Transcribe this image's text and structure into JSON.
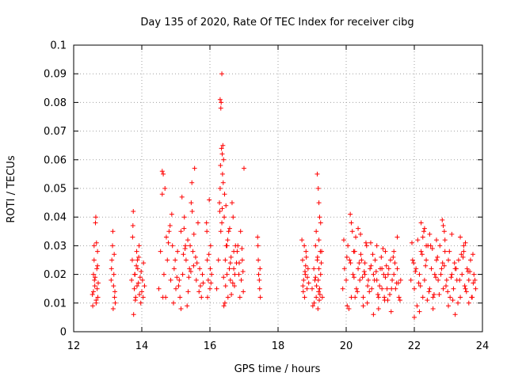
{
  "chart_data": {
    "type": "scatter",
    "title": "Day 135 of 2020, Rate Of TEC Index for receiver cibg",
    "xlabel": "GPS time / hours",
    "ylabel": "ROTI / TECUs",
    "xlim": [
      12,
      24
    ],
    "ylim": [
      0,
      0.1
    ],
    "x_ticks": [
      12,
      14,
      16,
      18,
      20,
      22,
      24
    ],
    "y_ticks": [
      0,
      0.01,
      0.02,
      0.03,
      0.04,
      0.05,
      0.06,
      0.07,
      0.08,
      0.09,
      0.1
    ],
    "x_tick_labels": [
      "12",
      "14",
      "16",
      "18",
      "20",
      "22",
      "24"
    ],
    "y_tick_labels": [
      "0",
      "0.01",
      "0.02",
      "0.03",
      "0.04",
      "0.05",
      "0.06",
      "0.07",
      "0.08",
      "0.09",
      "0.1"
    ],
    "grid": true,
    "marker": "+",
    "series": [
      {
        "name": "ROTI",
        "color": "#ff0000",
        "x": [
          12.55,
          12.58,
          12.6,
          12.62,
          12.64,
          12.66,
          12.68,
          12.7,
          12.72,
          12.56,
          12.6,
          12.65,
          12.69,
          12.71,
          12.63,
          12.67,
          12.58,
          12.7,
          12.61,
          12.66,
          13.1,
          13.12,
          13.15,
          13.18,
          13.2,
          13.22,
          13.14,
          13.17,
          13.11,
          13.21,
          13.16,
          13.19,
          13.7,
          13.72,
          13.75,
          13.78,
          13.8,
          13.82,
          13.85,
          13.88,
          13.9,
          13.92,
          13.95,
          14.0,
          14.05,
          14.08,
          13.74,
          13.81,
          13.87,
          13.93,
          13.98,
          14.02,
          13.76,
          13.84,
          13.91,
          13.97,
          13.73,
          13.79,
          14.04,
          13.86,
          14.5,
          14.55,
          14.6,
          14.65,
          14.7,
          14.75,
          14.8,
          14.85,
          14.9,
          14.95,
          15.0,
          15.05,
          15.1,
          15.15,
          15.2,
          15.25,
          15.3,
          15.35,
          15.4,
          15.45,
          15.5,
          15.55,
          15.6,
          15.65,
          15.7,
          15.75,
          15.8,
          14.62,
          14.68,
          14.72,
          14.88,
          14.98,
          15.08,
          15.18,
          15.28,
          15.38,
          15.48,
          15.58,
          15.68,
          15.78,
          14.6,
          14.63,
          14.93,
          15.12,
          15.24,
          15.33,
          15.42,
          15.52,
          15.47,
          15.36,
          15.22,
          15.03,
          14.83,
          14.78,
          15.62,
          15.72,
          15.15,
          15.27,
          15.44,
          15.53,
          15.9,
          15.92,
          15.95,
          15.98,
          16.0,
          16.02,
          16.05,
          15.93,
          15.97,
          16.01,
          15.91,
          16.03,
          16.2,
          16.25,
          16.3,
          16.32,
          16.35,
          16.38,
          16.4,
          16.42,
          16.45,
          16.48,
          16.5,
          16.55,
          16.6,
          16.65,
          16.7,
          16.75,
          16.8,
          16.85,
          16.9,
          16.95,
          17.0,
          16.3,
          16.33,
          16.34,
          16.36,
          16.31,
          16.37,
          16.39,
          16.43,
          16.47,
          16.52,
          16.58,
          16.62,
          16.68,
          16.72,
          16.78,
          16.82,
          16.88,
          16.92,
          16.98,
          16.32,
          16.35,
          16.29,
          16.44,
          16.41,
          16.46,
          16.53,
          16.57,
          16.63,
          16.67,
          16.73,
          16.86,
          16.94,
          16.97,
          16.28,
          16.36,
          16.4,
          16.5,
          16.6,
          16.7,
          17.4,
          17.42,
          17.45,
          17.48,
          17.43,
          17.46,
          17.41,
          17.47,
          18.7,
          18.72,
          18.75,
          18.78,
          18.8,
          18.82,
          18.85,
          18.88,
          18.9,
          18.74,
          18.81,
          18.77,
          18.86,
          18.83,
          18.73,
          18.79,
          19.0,
          19.05,
          19.08,
          19.1,
          19.12,
          19.15,
          19.18,
          19.2,
          19.22,
          19.25,
          19.28,
          19.3,
          19.15,
          19.18,
          19.2,
          19.22,
          19.25,
          19.12,
          19.2,
          19.24,
          19.06,
          19.1,
          19.16,
          19.19,
          19.27,
          19.02,
          19.13,
          19.23,
          19.17,
          19.21,
          19.9,
          19.95,
          20.0,
          20.05,
          20.1,
          20.15,
          20.2,
          20.25,
          20.3,
          20.35,
          20.4,
          20.45,
          20.5,
          20.55,
          20.6,
          20.65,
          20.7,
          20.75,
          20.8,
          20.85,
          20.9,
          20.95,
          21.0,
          21.05,
          21.1,
          21.15,
          21.2,
          21.25,
          21.3,
          21.35,
          21.4,
          21.45,
          21.5,
          21.55,
          21.6,
          20.12,
          20.18,
          20.22,
          20.28,
          20.38,
          20.48,
          20.58,
          20.68,
          20.78,
          20.88,
          20.98,
          21.08,
          21.18,
          21.28,
          21.38,
          21.48,
          21.58,
          19.93,
          20.03,
          20.13,
          20.23,
          20.33,
          20.43,
          20.53,
          20.63,
          20.73,
          20.83,
          20.93,
          21.03,
          21.13,
          21.23,
          21.33,
          21.43,
          21.53,
          20.15,
          20.08,
          20.42,
          20.62,
          20.72,
          21.12,
          21.32,
          20.02,
          20.5,
          20.9,
          21.4,
          21.22,
          21.05,
          20.35,
          20.26,
          20.55,
          20.8,
          21.5,
          20.95,
          21.15,
          21.9,
          21.95,
          22.0,
          22.05,
          22.1,
          22.15,
          22.2,
          22.25,
          22.3,
          22.35,
          22.4,
          22.45,
          22.5,
          22.55,
          22.6,
          22.65,
          22.7,
          22.75,
          22.8,
          22.85,
          22.9,
          22.95,
          23.0,
          23.05,
          23.1,
          23.15,
          23.2,
          23.25,
          23.3,
          23.35,
          23.4,
          23.45,
          23.5,
          23.55,
          23.6,
          23.65,
          23.7,
          23.75,
          23.8,
          21.93,
          22.03,
          22.13,
          22.23,
          22.33,
          22.43,
          22.53,
          22.63,
          22.73,
          22.83,
          22.93,
          23.03,
          23.13,
          23.23,
          23.33,
          23.43,
          23.53,
          23.63,
          23.73,
          21.98,
          22.08,
          22.18,
          22.28,
          22.38,
          22.48,
          22.58,
          22.68,
          22.78,
          22.88,
          22.98,
          23.08,
          23.18,
          23.28,
          23.38,
          23.48,
          23.58,
          23.68,
          23.78,
          22.2,
          22.3,
          22.25,
          22.35,
          22.82,
          22.85,
          22.88,
          22.9,
          23.1,
          23.35,
          23.5,
          22.15,
          22.55,
          23.0,
          23.2,
          23.6,
          22.0,
          22.45,
          22.65,
          23.45,
          23.72
        ],
        "y": [
          0.013,
          0.02,
          0.03,
          0.016,
          0.038,
          0.011,
          0.022,
          0.028,
          0.017,
          0.009,
          0.025,
          0.04,
          0.015,
          0.012,
          0.019,
          0.031,
          0.014,
          0.023,
          0.018,
          0.01,
          0.018,
          0.025,
          0.035,
          0.02,
          0.012,
          0.01,
          0.03,
          0.016,
          0.022,
          0.014,
          0.008,
          0.027,
          0.018,
          0.025,
          0.042,
          0.015,
          0.02,
          0.012,
          0.028,
          0.022,
          0.017,
          0.03,
          0.019,
          0.014,
          0.024,
          0.016,
          0.037,
          0.011,
          0.025,
          0.013,
          0.021,
          0.018,
          0.006,
          0.023,
          0.026,
          0.01,
          0.033,
          0.02,
          0.012,
          0.016,
          0.015,
          0.028,
          0.056,
          0.02,
          0.012,
          0.025,
          0.035,
          0.018,
          0.03,
          0.022,
          0.015,
          0.028,
          0.018,
          0.035,
          0.02,
          0.04,
          0.025,
          0.032,
          0.022,
          0.045,
          0.028,
          0.057,
          0.018,
          0.038,
          0.022,
          0.012,
          0.017,
          0.012,
          0.05,
          0.033,
          0.041,
          0.025,
          0.016,
          0.047,
          0.03,
          0.019,
          0.042,
          0.026,
          0.014,
          0.02,
          0.048,
          0.055,
          0.01,
          0.012,
          0.036,
          0.009,
          0.03,
          0.023,
          0.052,
          0.014,
          0.027,
          0.019,
          0.037,
          0.031,
          0.024,
          0.016,
          0.008,
          0.029,
          0.021,
          0.034,
          0.038,
          0.025,
          0.018,
          0.046,
          0.015,
          0.03,
          0.02,
          0.012,
          0.027,
          0.022,
          0.035,
          0.017,
          0.015,
          0.025,
          0.05,
          0.078,
          0.09,
          0.065,
          0.06,
          0.04,
          0.025,
          0.03,
          0.02,
          0.035,
          0.018,
          0.045,
          0.022,
          0.03,
          0.028,
          0.02,
          0.035,
          0.025,
          0.057,
          0.081,
          0.08,
          0.064,
          0.062,
          0.058,
          0.055,
          0.052,
          0.048,
          0.044,
          0.032,
          0.036,
          0.026,
          0.04,
          0.016,
          0.024,
          0.03,
          0.012,
          0.018,
          0.014,
          0.035,
          0.038,
          0.042,
          0.01,
          0.009,
          0.016,
          0.012,
          0.022,
          0.013,
          0.017,
          0.02,
          0.024,
          0.029,
          0.021,
          0.045,
          0.043,
          0.019,
          0.03,
          0.024,
          0.028,
          0.033,
          0.025,
          0.018,
          0.012,
          0.02,
          0.015,
          0.03,
          0.022,
          0.032,
          0.025,
          0.018,
          0.012,
          0.02,
          0.028,
          0.015,
          0.022,
          0.017,
          0.014,
          0.023,
          0.03,
          0.019,
          0.026,
          0.016,
          0.021,
          0.015,
          0.022,
          0.018,
          0.03,
          0.012,
          0.025,
          0.018,
          0.022,
          0.015,
          0.02,
          0.028,
          0.012,
          0.055,
          0.05,
          0.045,
          0.04,
          0.038,
          0.035,
          0.032,
          0.028,
          0.01,
          0.019,
          0.026,
          0.014,
          0.024,
          0.009,
          0.016,
          0.013,
          0.008,
          0.011,
          0.015,
          0.022,
          0.018,
          0.03,
          0.025,
          0.012,
          0.02,
          0.028,
          0.015,
          0.022,
          0.018,
          0.025,
          0.012,
          0.02,
          0.03,
          0.018,
          0.022,
          0.015,
          0.02,
          0.025,
          0.018,
          0.012,
          0.022,
          0.015,
          0.02,
          0.028,
          0.015,
          0.022,
          0.025,
          0.018,
          0.02,
          0.015,
          0.022,
          0.012,
          0.018,
          0.041,
          0.035,
          0.028,
          0.033,
          0.024,
          0.019,
          0.031,
          0.014,
          0.027,
          0.021,
          0.016,
          0.029,
          0.023,
          0.013,
          0.026,
          0.017,
          0.011,
          0.032,
          0.009,
          0.024,
          0.019,
          0.014,
          0.027,
          0.021,
          0.016,
          0.023,
          0.018,
          0.013,
          0.026,
          0.011,
          0.02,
          0.015,
          0.024,
          0.017,
          0.038,
          0.008,
          0.034,
          0.01,
          0.031,
          0.012,
          0.007,
          0.026,
          0.009,
          0.03,
          0.028,
          0.011,
          0.022,
          0.036,
          0.012,
          0.024,
          0.006,
          0.033,
          0.008,
          0.019,
          0.018,
          0.025,
          0.015,
          0.022,
          0.032,
          0.02,
          0.028,
          0.012,
          0.018,
          0.025,
          0.03,
          0.015,
          0.022,
          0.012,
          0.02,
          0.025,
          0.018,
          0.03,
          0.022,
          0.015,
          0.028,
          0.018,
          0.025,
          0.012,
          0.02,
          0.015,
          0.022,
          0.018,
          0.025,
          0.012,
          0.02,
          0.028,
          0.015,
          0.022,
          0.018,
          0.025,
          0.012,
          0.02,
          0.015,
          0.031,
          0.021,
          0.017,
          0.027,
          0.023,
          0.014,
          0.029,
          0.019,
          0.013,
          0.024,
          0.016,
          0.028,
          0.011,
          0.022,
          0.018,
          0.026,
          0.014,
          0.021,
          0.017,
          0.024,
          0.009,
          0.016,
          0.035,
          0.011,
          0.03,
          0.013,
          0.026,
          0.02,
          0.023,
          0.014,
          0.019,
          0.024,
          0.01,
          0.027,
          0.016,
          0.021,
          0.012,
          0.018,
          0.038,
          0.036,
          0.033,
          0.03,
          0.039,
          0.037,
          0.035,
          0.032,
          0.034,
          0.033,
          0.031,
          0.007,
          0.008,
          0.009,
          0.006,
          0.01,
          0.005,
          0.034,
          0.032,
          0.03,
          0.027
        ]
      }
    ]
  }
}
